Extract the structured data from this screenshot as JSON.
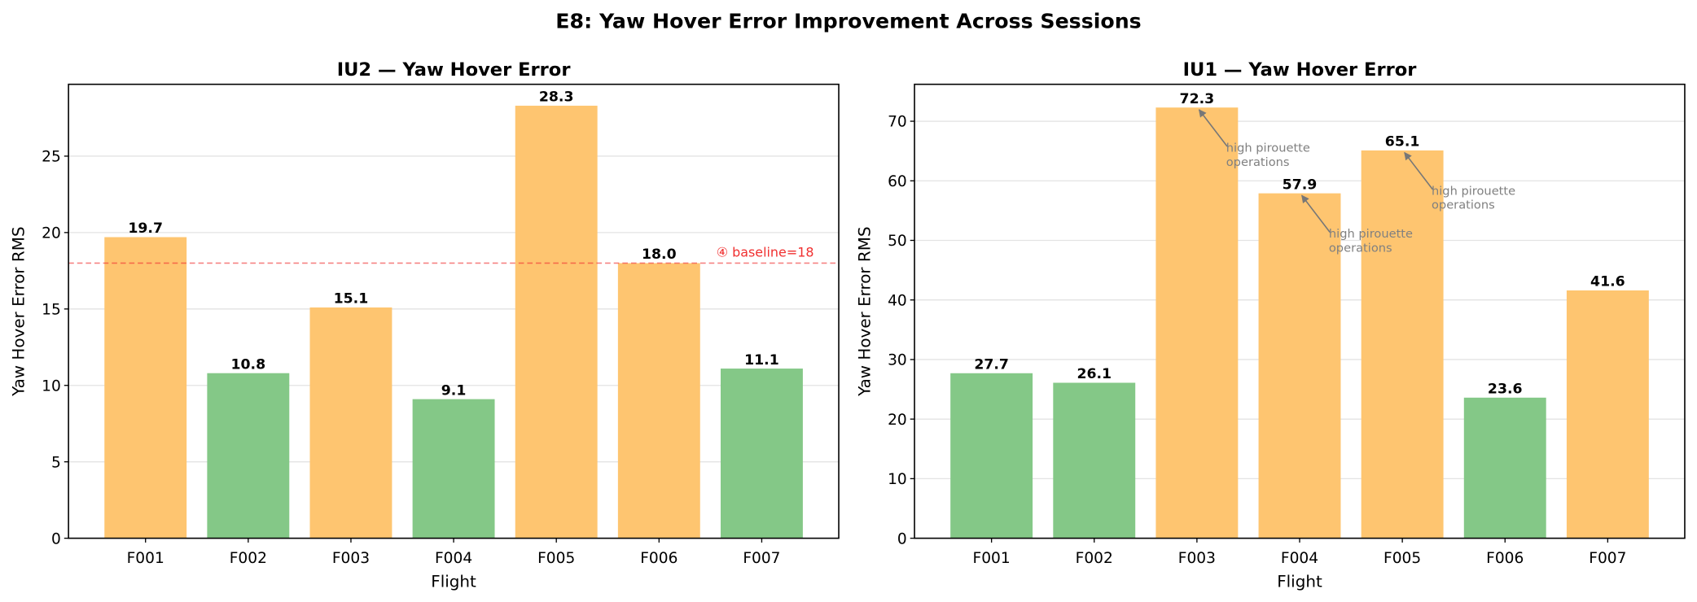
{
  "title": "E8: Yaw Hover Error Improvement Across Sessions",
  "chart_data": [
    {
      "type": "bar",
      "title": "IU2 — Yaw Hover Error",
      "x_label": "Flight",
      "y_label": "Yaw Hover Error RMS",
      "categories": [
        "F001",
        "F002",
        "F003",
        "F004",
        "F005",
        "F006",
        "F007"
      ],
      "values": [
        19.7,
        10.8,
        15.1,
        9.1,
        28.3,
        18.0,
        11.1
      ],
      "value_labels": [
        "19.7",
        "10.8",
        "15.1",
        "9.1",
        "28.3",
        "18.0",
        "11.1"
      ],
      "colors": [
        "#fec570",
        "#84c887",
        "#fec570",
        "#84c887",
        "#fec570",
        "#fec570",
        "#84c887"
      ],
      "ylim": [
        0,
        29.7
      ],
      "yticks": [
        0,
        5,
        10,
        15,
        20,
        25
      ],
      "grid": true,
      "reference_line": {
        "value": 18,
        "label": "④ baseline=18",
        "color": "#f03030"
      }
    },
    {
      "type": "bar",
      "title": "IU1 — Yaw Hover Error",
      "x_label": "Flight",
      "y_label": "Yaw Hover Error RMS",
      "categories": [
        "F001",
        "F002",
        "F003",
        "F004",
        "F005",
        "F006",
        "F007"
      ],
      "values": [
        27.7,
        26.1,
        72.3,
        57.9,
        65.1,
        23.6,
        41.6
      ],
      "value_labels": [
        "27.7",
        "26.1",
        "72.3",
        "57.9",
        "65.1",
        "23.6",
        "41.6"
      ],
      "colors": [
        "#84c887",
        "#84c887",
        "#fec570",
        "#fec570",
        "#fec570",
        "#84c887",
        "#fec570"
      ],
      "ylim": [
        0,
        76.2
      ],
      "yticks": [
        0,
        10,
        20,
        30,
        40,
        50,
        60,
        70
      ],
      "grid": true,
      "annotations": [
        {
          "category": "F003",
          "lines": [
            "high pirouette",
            "operations"
          ]
        },
        {
          "category": "F004",
          "lines": [
            "high pirouette",
            "operations"
          ]
        },
        {
          "category": "F005",
          "lines": [
            "high pirouette",
            "operations"
          ]
        }
      ]
    }
  ]
}
